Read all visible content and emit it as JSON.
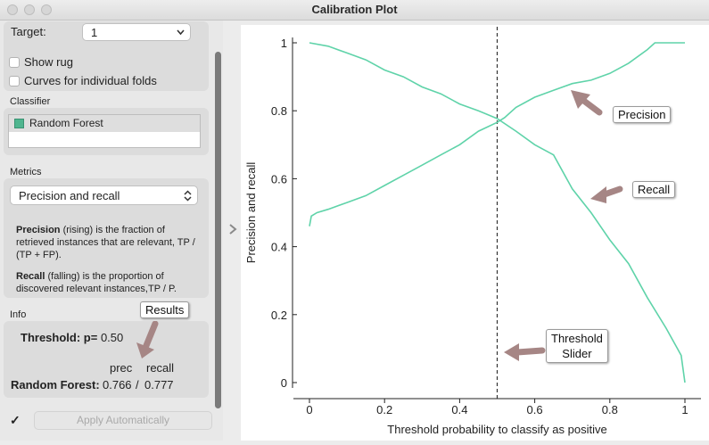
{
  "window": {
    "title": "Calibration Plot"
  },
  "sidebar": {
    "target_label": "Target:",
    "target_value": "1",
    "show_rug": "Show rug",
    "curves_folds": "Curves for individual folds",
    "classifier_header": "Classifier",
    "classifiers": [
      {
        "label": "Random Forest",
        "color": "#4fb58f"
      }
    ],
    "metrics_header": "Metrics",
    "metric_value": "Precision and recall",
    "precision_term": "Precision",
    "precision_desc": " (rising) is the fraction of retrieved instances that are relevant, TP / (TP + FP).",
    "recall_term": "Recall",
    "recall_desc": " (falling) is the proportion of discovered relevant instances,TP / P.",
    "info_header": "Info",
    "threshold_label": "Threshold: p=",
    "threshold_value": "0.50",
    "col_prec": "prec",
    "col_recall": "recall",
    "row_name": "Random Forest:",
    "prec_value": "0.766",
    "recall_value": "0.777",
    "apply_checked": true,
    "apply_button": "Apply Automatically"
  },
  "annotations": {
    "results": "Results",
    "precision": "Precision",
    "recall": "Recall",
    "threshold_line1": "Threshold",
    "threshold_line2": "Slider"
  },
  "chart_data": {
    "type": "line",
    "xlabel": "Threshold probability to classify as positive",
    "ylabel": "Precision and recall",
    "xlim": [
      0,
      1
    ],
    "ylim": [
      0,
      1
    ],
    "xticks": [
      "0",
      "0.2",
      "0.4",
      "0.6",
      "0.8",
      "1"
    ],
    "yticks": [
      "0",
      "0.2",
      "0.4",
      "0.6",
      "0.8",
      "1"
    ],
    "threshold": 0.5,
    "line_color": "#5fd3a9",
    "series": [
      {
        "name": "Precision",
        "x": [
          0,
          0.005,
          0.02,
          0.05,
          0.1,
          0.15,
          0.2,
          0.25,
          0.3,
          0.35,
          0.4,
          0.45,
          0.5,
          0.52,
          0.55,
          0.6,
          0.65,
          0.7,
          0.75,
          0.8,
          0.85,
          0.9,
          0.92,
          0.95,
          1.0
        ],
        "values": [
          0.46,
          0.49,
          0.5,
          0.51,
          0.53,
          0.55,
          0.58,
          0.61,
          0.64,
          0.67,
          0.7,
          0.74,
          0.766,
          0.78,
          0.81,
          0.84,
          0.86,
          0.88,
          0.89,
          0.91,
          0.94,
          0.98,
          1.0,
          1.0,
          1.0
        ]
      },
      {
        "name": "Recall",
        "x": [
          0,
          0.05,
          0.1,
          0.15,
          0.2,
          0.25,
          0.3,
          0.35,
          0.4,
          0.45,
          0.5,
          0.55,
          0.6,
          0.65,
          0.7,
          0.75,
          0.8,
          0.85,
          0.9,
          0.95,
          0.98,
          0.99,
          1.0
        ],
        "values": [
          1.0,
          0.99,
          0.97,
          0.95,
          0.92,
          0.9,
          0.87,
          0.85,
          0.82,
          0.8,
          0.777,
          0.74,
          0.7,
          0.67,
          0.57,
          0.5,
          0.42,
          0.35,
          0.25,
          0.16,
          0.1,
          0.08,
          0.0
        ]
      }
    ]
  }
}
